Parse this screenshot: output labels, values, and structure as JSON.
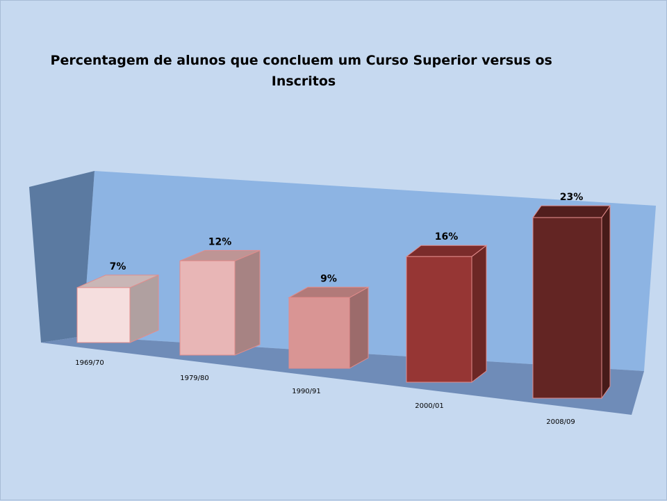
{
  "chart_data": {
    "type": "bar",
    "title": "Percentagem  de alunos que concluem  um Curso Superior versus os Inscritos",
    "title_lines": [
      "Percentagem  de alunos que concluem  um Curso Superior versus os",
      "Inscritos"
    ],
    "categories": [
      "1969/70",
      "1979/80",
      "1990/91",
      "2000/01",
      "2008/09"
    ],
    "values": [
      7,
      12,
      9,
      16,
      23
    ],
    "value_labels": [
      "7%",
      "12%",
      "9%",
      "16%",
      "23%"
    ],
    "unit": "%",
    "xlabel": "",
    "ylabel": "",
    "ylim": [
      0,
      25
    ],
    "grid": false,
    "legend": "none",
    "style": "3d-column",
    "colors": {
      "background": "#c6d9f0",
      "back_wall": "#8db4e3",
      "side_wall": "#5b7aa1",
      "floor": "#6f8cb8",
      "bar_fronts": [
        "#f5dede",
        "#e8b6b6",
        "#d99594",
        "#963634",
        "#632523"
      ],
      "bar_outline": "#e28c8c"
    }
  }
}
